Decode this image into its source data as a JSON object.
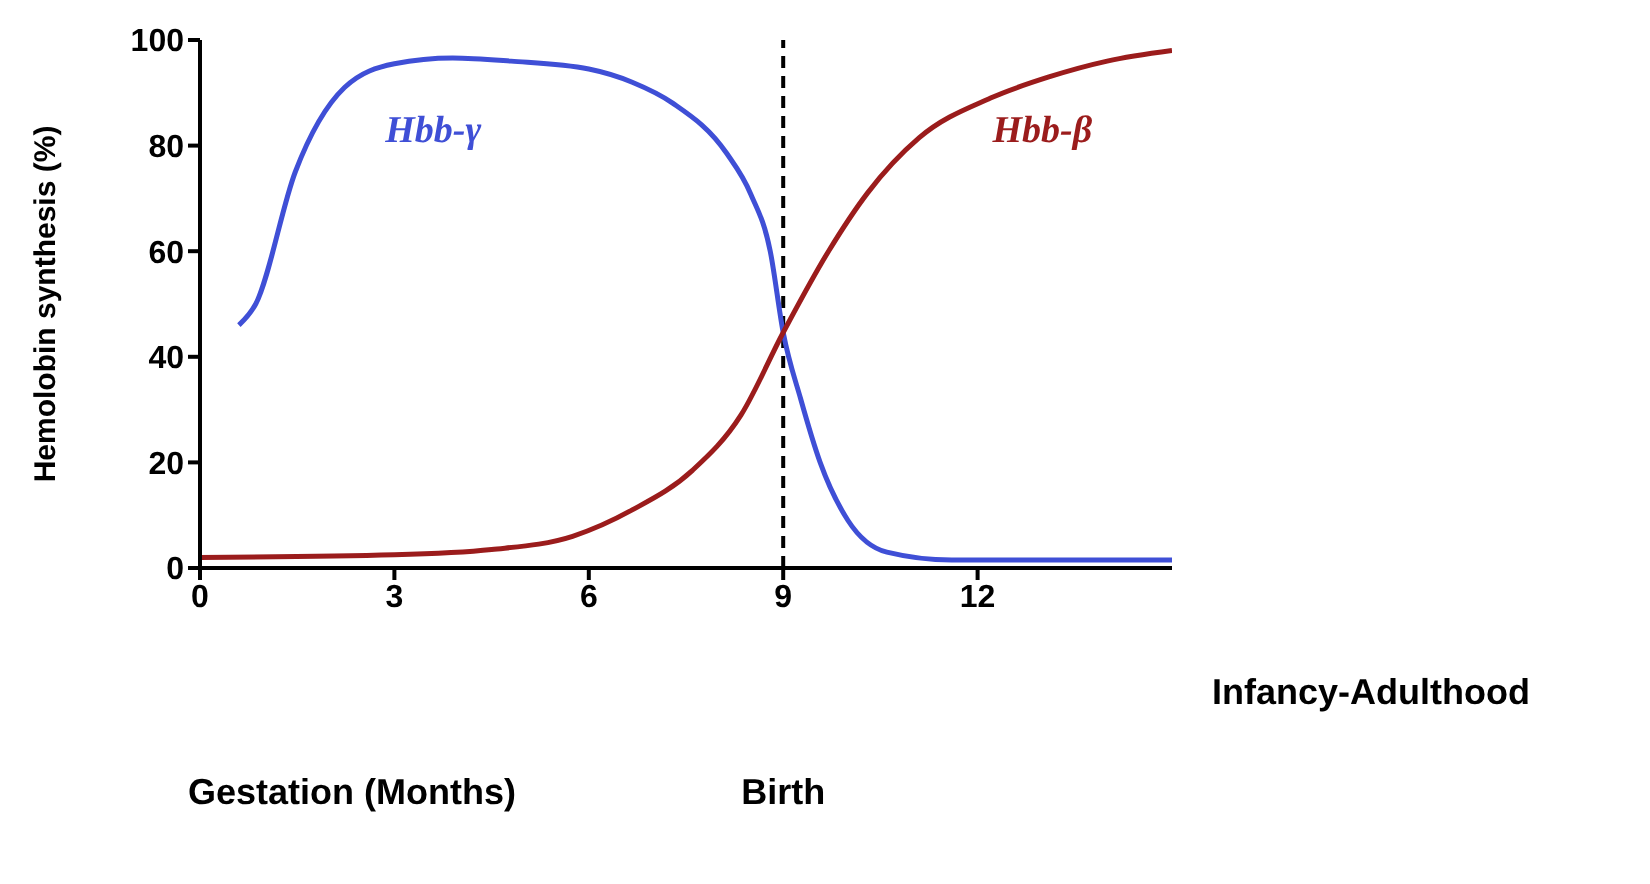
{
  "chart_data": {
    "type": "line",
    "xlabel": "Gestation (Months)",
    "ylabel": "Hemolobin synthesis (%)",
    "xlim": [
      0,
      15
    ],
    "xticks": [
      0,
      3,
      6,
      9,
      12
    ],
    "ylim": [
      0,
      100
    ],
    "yticks": [
      0,
      20,
      40,
      60,
      80,
      100
    ],
    "grid": false,
    "legend": false,
    "marker": "none",
    "line_style": "solid",
    "series": [
      {
        "name": "Hbb-γ",
        "color": "#3f4fd6",
        "x": [
          0.6,
          0.86,
          1.47,
          2.23,
          3,
          3.9,
          4.8,
          6,
          6.67,
          7.3,
          8.13,
          8.5,
          8.8,
          9,
          9.27,
          9.57,
          10,
          10.6,
          11.6,
          15
        ],
        "values": [
          46,
          50,
          75,
          91,
          95.5,
          96.6,
          96,
          94.5,
          92,
          88,
          78.5,
          70.8,
          60,
          44.6,
          32,
          20,
          9,
          3,
          1.5,
          1.5
        ]
      },
      {
        "name": "Hbb-β",
        "color": "#9b1c1c",
        "x": [
          0,
          3,
          4.5,
          5.75,
          6.67,
          7.6,
          8.35,
          9,
          9.7,
          10.3,
          11.1,
          12.2,
          13.1,
          14,
          15
        ],
        "values": [
          2,
          2.5,
          3.5,
          6,
          11,
          18.5,
          29,
          44.6,
          60,
          71,
          81.5,
          89,
          93,
          96,
          98
        ]
      }
    ],
    "ref_lines": [
      {
        "axis": "x",
        "value": 9,
        "label": "Birth",
        "color": "#000000",
        "line_style": "dashed"
      }
    ],
    "annotations": [
      "Infancy-Adulthood"
    ]
  }
}
